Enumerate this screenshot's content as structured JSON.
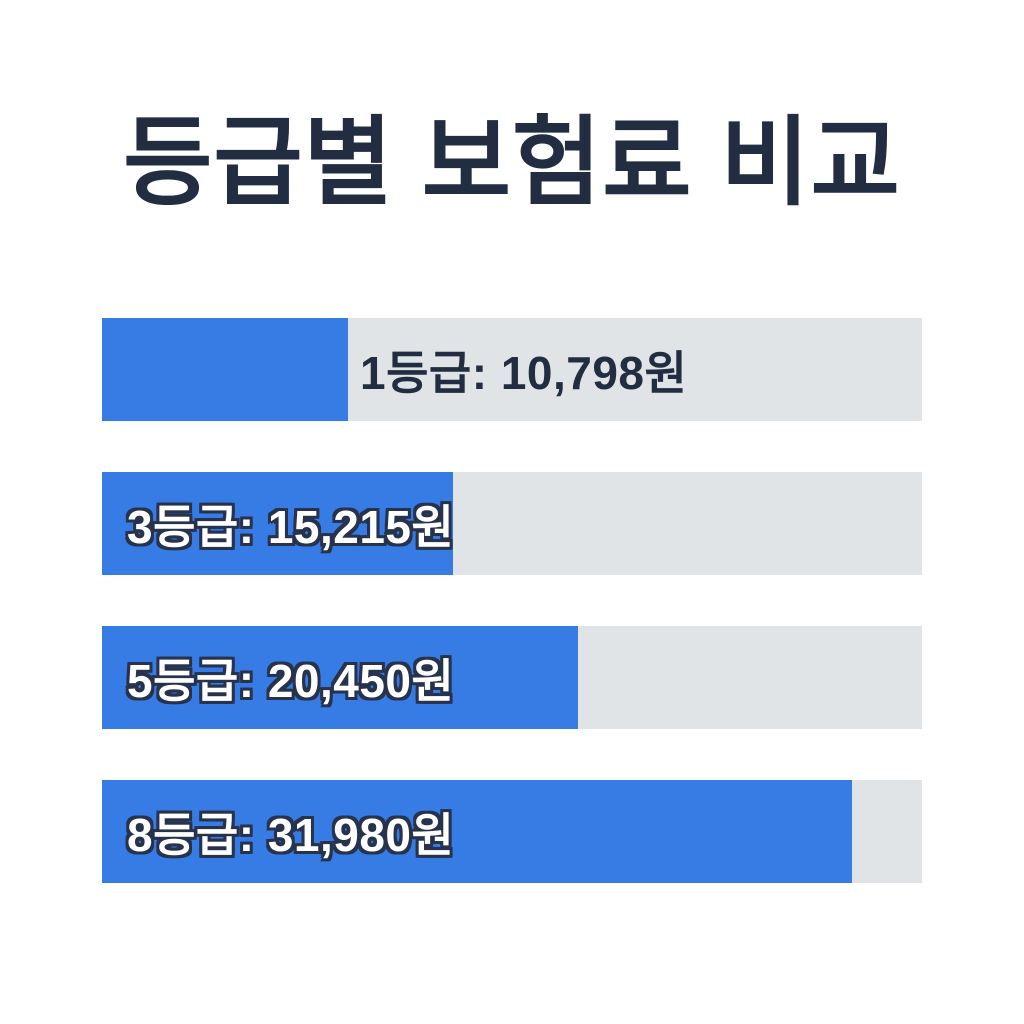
{
  "title": "등급별 보험료 비교",
  "colors": {
    "background": "#ffffff",
    "title_text": "#222D42",
    "bar_fill": "#377CE5",
    "bar_track": "#E1E4E7",
    "label_inside_text": "#ffffff",
    "label_inside_outline": "#27324C",
    "label_outside_text": "#222D42"
  },
  "chart_data": {
    "type": "bar",
    "orientation": "horizontal",
    "title": "등급별 보험료 비교",
    "categories": [
      "1등급",
      "3등급",
      "5등급",
      "8등급"
    ],
    "values": [
      10798,
      15215,
      20450,
      31980
    ],
    "unit": "원",
    "data_labels": [
      "1등급: 10,798원",
      "3등급: 15,215원",
      "5등급: 20,450원",
      "8등급: 31,980원"
    ],
    "fill_percents": [
      30,
      42.8,
      58,
      91.5
    ],
    "grid": false,
    "legend": false,
    "axes_shown": false
  },
  "bars": [
    {
      "label": "1등급: 10,798원",
      "fill_percent": 30,
      "label_position": "outside"
    },
    {
      "label": "3등급: 15,215원",
      "fill_percent": 42.8,
      "label_position": "inside"
    },
    {
      "label": "5등급: 20,450원",
      "fill_percent": 58,
      "label_position": "inside"
    },
    {
      "label": "8등급: 31,980원",
      "fill_percent": 91.5,
      "label_position": "inside"
    }
  ]
}
